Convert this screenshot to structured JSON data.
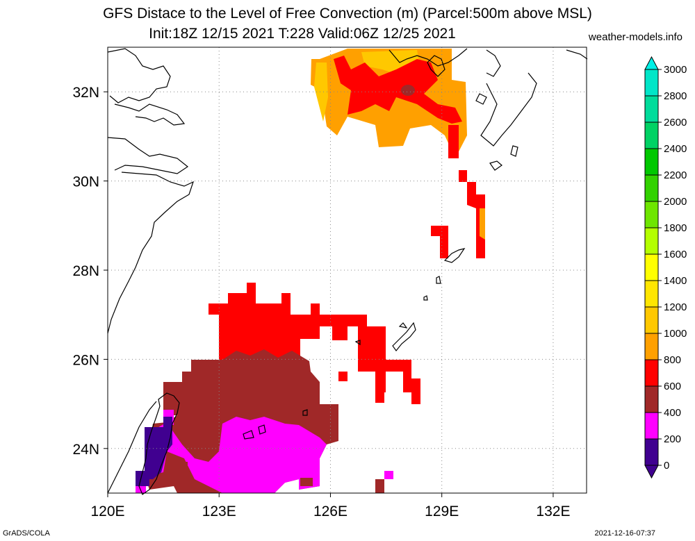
{
  "title_line1": "GFS Distace to the Level of Free Convection (m) (Parcel:500m above MSL)",
  "title_line2": "Init:18Z 12/15 2021 T:228 Valid:06Z 12/25 2021",
  "site": "weather-models.info",
  "footer_left": "GrADS/COLA",
  "footer_right": "2021-12-16-07:37",
  "map": {
    "lon_range": [
      120,
      132.9
    ],
    "lat_range": [
      23.0,
      33.0
    ],
    "lon_ticks": [
      {
        "value": 120,
        "label": "120E"
      },
      {
        "value": 123,
        "label": "123E"
      },
      {
        "value": 126,
        "label": "126E"
      },
      {
        "value": 129,
        "label": "129E"
      },
      {
        "value": 132,
        "label": "132E"
      }
    ],
    "lat_ticks": [
      {
        "value": 24,
        "label": "24N"
      },
      {
        "value": 26,
        "label": "26N"
      },
      {
        "value": 28,
        "label": "28N"
      },
      {
        "value": 30,
        "label": "30N"
      },
      {
        "value": 32,
        "label": "32N"
      }
    ],
    "grid": true
  },
  "colorbar": {
    "levels": [
      "0",
      "200",
      "400",
      "600",
      "800",
      "1000",
      "1200",
      "1400",
      "1600",
      "1800",
      "2000",
      "2200",
      "2400",
      "2600",
      "2800",
      "3000"
    ],
    "colors": [
      "#400090",
      "#ff00ff",
      "#a02828",
      "#ff0000",
      "#ffa000",
      "#ffc800",
      "#ffe600",
      "#ffff00",
      "#b4ff00",
      "#6ee600",
      "#32d200",
      "#00c800",
      "#00d264",
      "#00dc9b",
      "#00e6c8",
      "#00f0e6"
    ]
  }
}
